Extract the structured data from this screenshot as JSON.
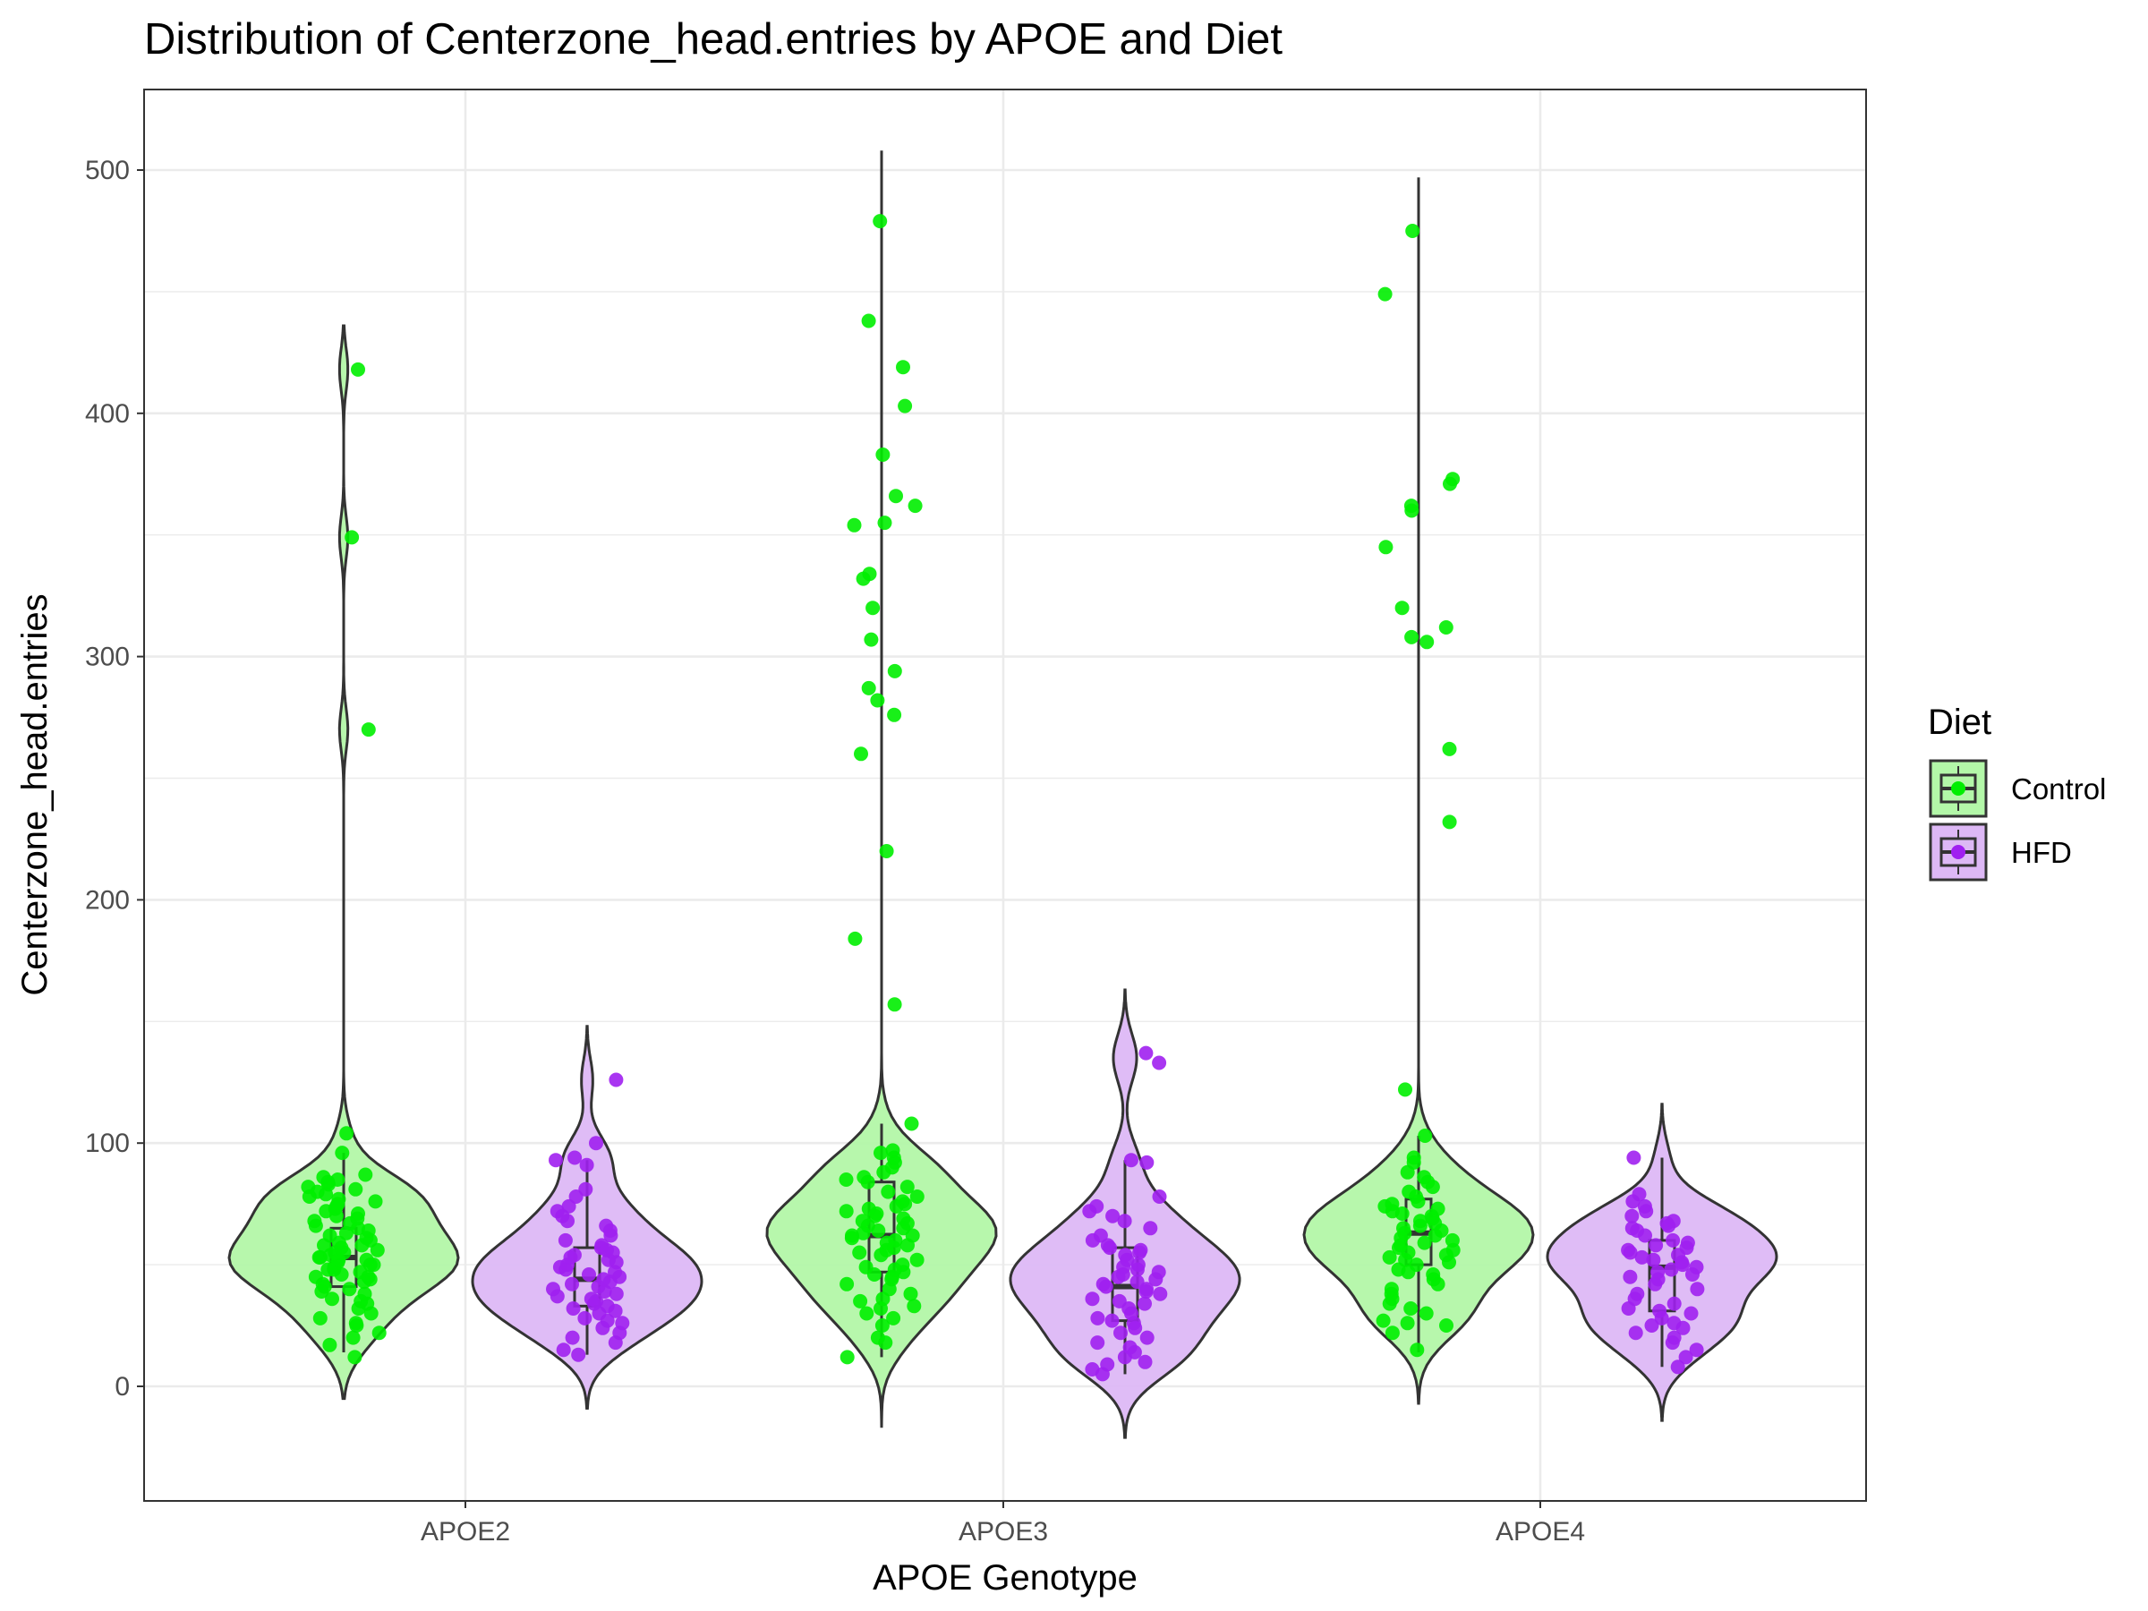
{
  "chart_data": {
    "type": "violin",
    "title": "Distribution of Centerzone_head.entries by APOE and Diet",
    "xlabel": "APOE Genotype",
    "ylabel": "Centerzone_head.entries",
    "categories": [
      "APOE2",
      "APOE3",
      "APOE4"
    ],
    "ylim": [
      -45,
      535
    ],
    "yticks": [
      0,
      100,
      200,
      300,
      400,
      500
    ],
    "grid": true,
    "legend": {
      "title": "Diet",
      "position": "right",
      "entries": [
        {
          "label": "Control",
          "color": "#00ee00",
          "fill": "#b3f7a8"
        },
        {
          "label": "HFD",
          "color": "#a020f0",
          "fill": "#ddb8f5"
        }
      ]
    },
    "series": [
      {
        "name": "Control",
        "groups": [
          {
            "category": "APOE2",
            "box": {
              "lower_whisker": 14,
              "q1": 41,
              "median": 53,
              "q3": 65,
              "upper_whisker": 96
            },
            "range": [
              -5,
              436
            ],
            "outliers": [
              104,
              270,
              349,
              418
            ],
            "points": [
              12,
              17,
              20,
              22,
              25,
              26,
              28,
              30,
              32,
              34,
              35,
              36,
              38,
              39,
              40,
              41,
              42,
              43,
              44,
              45,
              45,
              46,
              47,
              48,
              48,
              49,
              50,
              50,
              51,
              52,
              52,
              53,
              53,
              54,
              55,
              55,
              56,
              57,
              58,
              58,
              59,
              60,
              61,
              62,
              63,
              64,
              65,
              66,
              67,
              68,
              69,
              70,
              71,
              72,
              73,
              74,
              75,
              76,
              77,
              78,
              79,
              80,
              81,
              82,
              83,
              84,
              85,
              86,
              87,
              96,
              104,
              270,
              349,
              418
            ]
          },
          {
            "category": "APOE3",
            "box": {
              "lower_whisker": 12,
              "q1": 47,
              "median": 62,
              "q3": 84,
              "upper_whisker": 108
            },
            "range": [
              -17,
              508
            ],
            "outliers": [
              157,
              184,
              220,
              260,
              276,
              282,
              287,
              294,
              307,
              320,
              332,
              334,
              354,
              355,
              362,
              366,
              383,
              403,
              419,
              438,
              479
            ],
            "points": [
              12,
              18,
              20,
              25,
              28,
              30,
              32,
              33,
              35,
              36,
              38,
              40,
              42,
              44,
              45,
              46,
              47,
              48,
              49,
              50,
              52,
              54,
              55,
              56,
              57,
              58,
              59,
              60,
              61,
              62,
              62,
              63,
              64,
              65,
              66,
              67,
              68,
              69,
              70,
              71,
              72,
              73,
              74,
              75,
              76,
              78,
              80,
              82,
              84,
              85,
              86,
              88,
              90,
              92,
              94,
              96,
              97,
              108
            ]
          },
          {
            "category": "APOE4",
            "box": {
              "lower_whisker": 14,
              "q1": 50,
              "median": 63,
              "q3": 77,
              "upper_whisker": 103
            },
            "range": [
              -7,
              497
            ],
            "outliers": [
              122,
              232,
              262,
              306,
              308,
              312,
              320,
              345,
              360,
              362,
              371,
              373,
              449,
              475
            ],
            "points": [
              15,
              22,
              25,
              26,
              27,
              30,
              32,
              34,
              36,
              38,
              40,
              42,
              44,
              46,
              47,
              48,
              50,
              51,
              52,
              53,
              54,
              55,
              56,
              57,
              58,
              59,
              60,
              61,
              62,
              63,
              64,
              65,
              66,
              67,
              68,
              69,
              70,
              71,
              72,
              73,
              74,
              75,
              76,
              78,
              80,
              82,
              84,
              86,
              88,
              92,
              94,
              103
            ]
          }
        ]
      },
      {
        "name": "HFD",
        "groups": [
          {
            "category": "APOE2",
            "box": {
              "lower_whisker": 13,
              "q1": 33,
              "median": 44,
              "q3": 57,
              "upper_whisker": 93
            },
            "range": [
              -9,
              148
            ],
            "outliers": [
              100,
              126
            ],
            "points": [
              13,
              15,
              18,
              20,
              22,
              24,
              26,
              27,
              28,
              30,
              31,
              32,
              33,
              34,
              35,
              36,
              37,
              38,
              39,
              40,
              41,
              42,
              43,
              44,
              45,
              46,
              47,
              48,
              49,
              50,
              51,
              52,
              53,
              54,
              55,
              56,
              57,
              58,
              60,
              62,
              64,
              66,
              68,
              70,
              72,
              74,
              78,
              81,
              91,
              93,
              94,
              100,
              126
            ]
          },
          {
            "category": "APOE3",
            "box": {
              "lower_whisker": 5,
              "q1": 27,
              "median": 41,
              "q3": 57,
              "upper_whisker": 93
            },
            "range": [
              -21,
              163
            ],
            "outliers": [
              133,
              137
            ],
            "points": [
              5,
              7,
              9,
              10,
              12,
              14,
              16,
              18,
              20,
              22,
              24,
              26,
              27,
              28,
              30,
              32,
              34,
              35,
              36,
              38,
              39,
              40,
              41,
              42,
              43,
              44,
              45,
              46,
              47,
              48,
              49,
              50,
              52,
              54,
              55,
              56,
              57,
              58,
              60,
              62,
              65,
              68,
              70,
              72,
              74,
              78,
              92,
              93,
              133,
              137
            ]
          },
          {
            "category": "APOE4",
            "box": {
              "lower_whisker": 8,
              "q1": 31,
              "median": 49,
              "q3": 60,
              "upper_whisker": 94
            },
            "range": [
              -14,
              116
            ],
            "outliers": [],
            "points": [
              8,
              12,
              15,
              18,
              20,
              22,
              24,
              25,
              26,
              28,
              30,
              31,
              32,
              34,
              36,
              38,
              40,
              42,
              44,
              45,
              46,
              47,
              48,
              49,
              50,
              51,
              52,
              53,
              54,
              55,
              56,
              57,
              58,
              59,
              60,
              62,
              64,
              65,
              66,
              67,
              68,
              70,
              72,
              74,
              76,
              79,
              94
            ]
          }
        ]
      }
    ]
  }
}
